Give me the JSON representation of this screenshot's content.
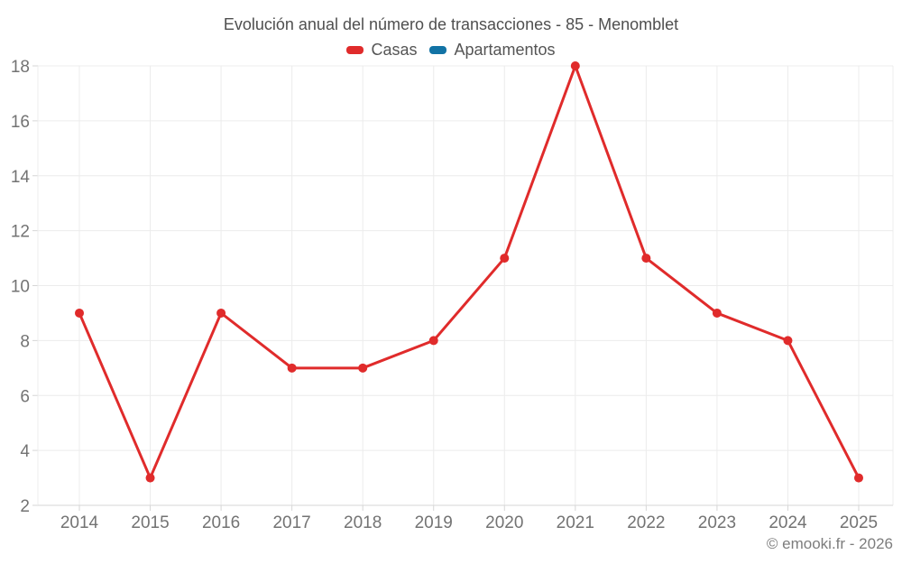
{
  "chart_data": {
    "type": "line",
    "title": "Evolución anual del número de transacciones - 85 - Menomblet",
    "categories": [
      "2014",
      "2015",
      "2016",
      "2017",
      "2018",
      "2019",
      "2020",
      "2021",
      "2022",
      "2023",
      "2024",
      "2025"
    ],
    "series": [
      {
        "name": "Casas",
        "color": "#e02b2b",
        "values": [
          9,
          3,
          9,
          7,
          7,
          8,
          11,
          18,
          11,
          9,
          8,
          3
        ]
      },
      {
        "name": "Apartamentos",
        "color": "#1273a5",
        "values": []
      }
    ],
    "ylim": [
      2,
      18
    ],
    "yticks": [
      2,
      4,
      6,
      8,
      10,
      12,
      14,
      16,
      18
    ],
    "grid": true,
    "legend_position": "top"
  },
  "footer": {
    "attribution": "© emooki.fr - 2026"
  },
  "colors": {
    "grid": "#ececec",
    "axis_line": "#d6d6d6",
    "axis_text": "#737373",
    "title_text": "#4f4f4f",
    "casas": "#e02b2b",
    "apartamentos": "#1273a5"
  }
}
